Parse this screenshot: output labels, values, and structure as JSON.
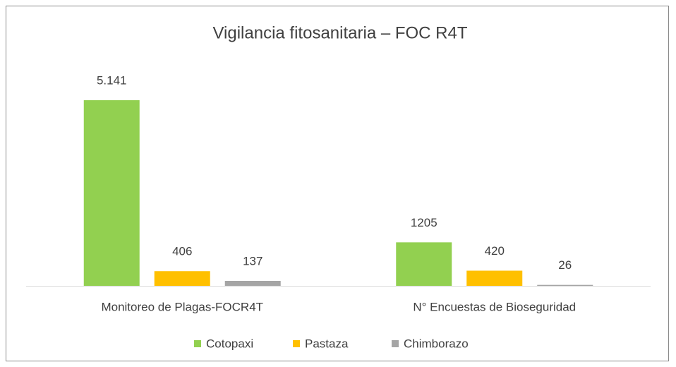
{
  "chart_data": {
    "type": "bar",
    "title": "Vigilancia fitosanitaria – FOC R4T",
    "categories": [
      "Monitoreo de Plagas-FOCR4T",
      "N° Encuestas de Bioseguridad"
    ],
    "series": [
      {
        "name": "Cotopaxi",
        "color": "#92d050",
        "values": [
          5141,
          1205
        ],
        "value_labels": [
          "5.141",
          "1205"
        ]
      },
      {
        "name": "Pastaza",
        "color": "#ffc000",
        "values": [
          406,
          420
        ]
      },
      {
        "name": "Chimborazo",
        "color": "#a5a5a5",
        "values": [
          137,
          26
        ]
      }
    ],
    "legend": "bottom"
  }
}
